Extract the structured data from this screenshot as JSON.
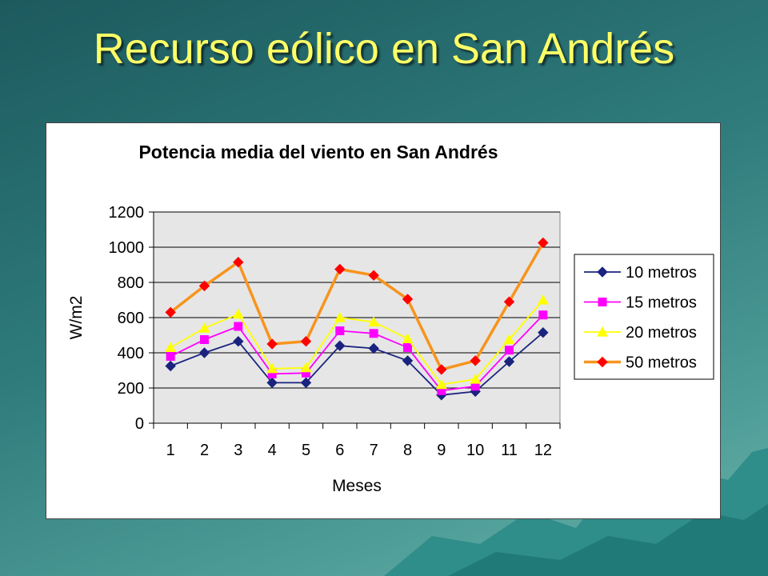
{
  "slide": {
    "title": "Recurso eólico en San Andrés"
  },
  "chart_data": {
    "type": "line",
    "title": "Potencia media del viento en San Andrés",
    "xlabel": "Meses",
    "ylabel": "W/m2",
    "ylim": [
      0,
      1200
    ],
    "yticks": [
      "0",
      "200",
      "400",
      "600",
      "800",
      "1000",
      "1200"
    ],
    "categories": [
      "1",
      "2",
      "3",
      "4",
      "5",
      "6",
      "7",
      "8",
      "9",
      "10",
      "11",
      "12"
    ],
    "grid": "horizontal",
    "legend": "right",
    "series": [
      {
        "name": "10 metros",
        "color": "#1a237e",
        "marker": "diamond",
        "values": [
          325,
          400,
          465,
          230,
          230,
          440,
          425,
          355,
          160,
          180,
          350,
          515
        ]
      },
      {
        "name": "15 metros",
        "color": "#ff00ff",
        "marker": "square",
        "values": [
          380,
          475,
          550,
          280,
          285,
          525,
          510,
          430,
          185,
          210,
          415,
          615
        ]
      },
      {
        "name": "20 metros",
        "color": "#ffff00",
        "marker": "triangle",
        "values": [
          430,
          540,
          620,
          310,
          315,
          600,
          575,
          480,
          220,
          250,
          475,
          700
        ]
      },
      {
        "name": "50 metros",
        "color": "#f7941d",
        "marker": "diamond-red",
        "values": [
          630,
          780,
          915,
          450,
          465,
          875,
          840,
          705,
          305,
          355,
          690,
          1025
        ]
      }
    ]
  }
}
